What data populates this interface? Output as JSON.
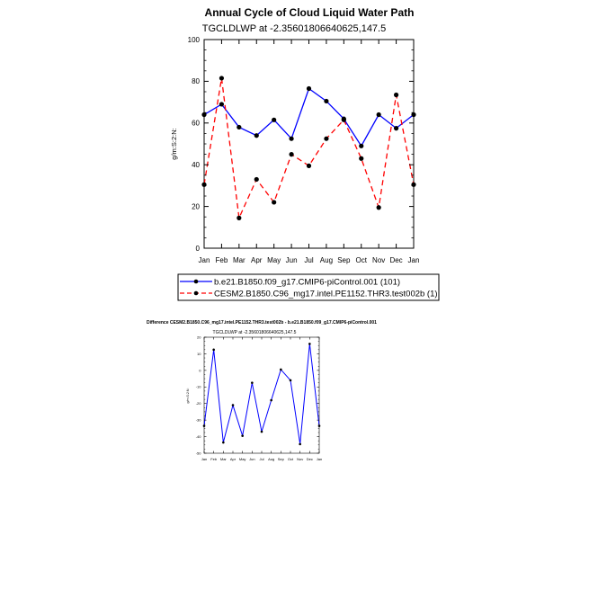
{
  "chart_data": [
    {
      "type": "line",
      "title": "Annual Cycle of Cloud Liquid Water Path",
      "subtitle": "TGCLDLWP at -2.35601806640625,147.5",
      "ylabel": "g/m:S:2:N:",
      "xlabel": "",
      "ylim": [
        0,
        100
      ],
      "yticks": [
        "0",
        "20",
        "40",
        "60",
        "80",
        "100"
      ],
      "categories": [
        "Jan",
        "Feb",
        "Mar",
        "Apr",
        "May",
        "Jun",
        "Jul",
        "Aug",
        "Sep",
        "Oct",
        "Nov",
        "Dec",
        "Jan"
      ],
      "series": [
        {
          "name": "b.e21.B1850.f09_g17.CMIP6-piControl.001 (101)",
          "color": "#0000ff",
          "dash": "solid",
          "values": [
            64,
            69,
            58,
            54,
            61.5,
            52.5,
            76.5,
            70.5,
            62,
            49,
            64,
            57.5,
            64
          ]
        },
        {
          "name": "CESM2.B1850.C96_mg17.intel.PE1152.THR3.test002b (1)",
          "color": "#ff0000",
          "dash": "dashed",
          "values": [
            30.5,
            81.5,
            14.5,
            33,
            22,
            45,
            39.5,
            52.5,
            61.5,
            43,
            19.5,
            73.5,
            30.5
          ]
        }
      ],
      "legend_position": "bottom"
    },
    {
      "type": "line",
      "title": "Difference CESM2.B1850.C96_mg17.intel.PE1152.THR3.test002b - b.e21.B1850.f09_g17.CMIP6-piControl.001",
      "subtitle": "TGCLDLWP at -2.35601806640625,147.5",
      "ylabel": "g/m:S:2:N:",
      "xlabel": "",
      "ylim": [
        -50,
        20
      ],
      "yticks": [
        "-50",
        "-40",
        "-30",
        "-20",
        "-10",
        "0",
        "10",
        "20"
      ],
      "categories": [
        "Jan",
        "Feb",
        "Mar",
        "Apr",
        "May",
        "Jun",
        "Jul",
        "Aug",
        "Sep",
        "Oct",
        "Nov",
        "Dec",
        "Jan"
      ],
      "series": [
        {
          "name": "Difference",
          "color": "#0000ff",
          "dash": "solid",
          "values": [
            -33.5,
            12.5,
            -43.5,
            -21,
            -39.5,
            -7.5,
            -37,
            -18,
            0.5,
            -6,
            -44.5,
            16,
            -33.5
          ]
        }
      ]
    }
  ]
}
